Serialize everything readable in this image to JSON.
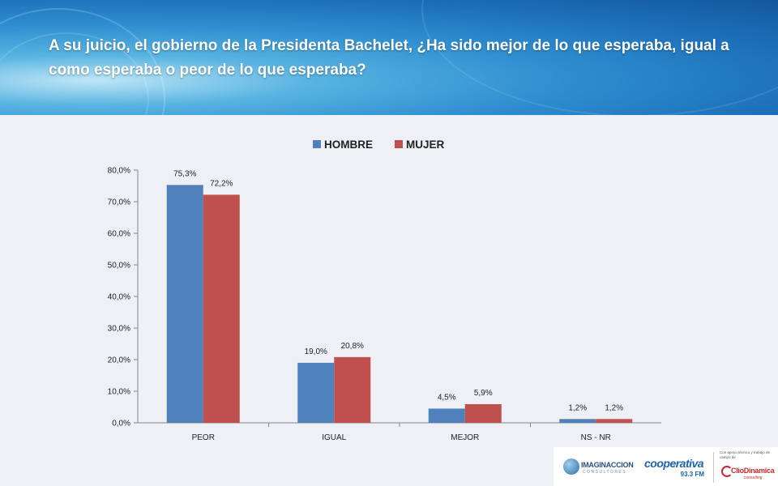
{
  "title": "A su juicio, el gobierno de la Presidenta Bachelet, ¿Ha sido mejor de lo que esperaba, igual a como esperaba o peor de lo que esperaba?",
  "chart_data": {
    "type": "bar",
    "title": "",
    "xlabel": "",
    "ylabel": "",
    "categories": [
      "PEOR",
      "IGUAL",
      "MEJOR",
      "NS - NR"
    ],
    "series": [
      {
        "name": "HOMBRE",
        "values": [
          75.3,
          19.0,
          4.5,
          1.2
        ],
        "labels": [
          "75,3%",
          "19,0%",
          "4,5%",
          "1,2%"
        ],
        "color": "#4f81bd"
      },
      {
        "name": "MUJER",
        "values": [
          72.2,
          20.8,
          5.9,
          1.2
        ],
        "labels": [
          "72,2%",
          "20,8%",
          "5,9%",
          "1,2%"
        ],
        "color": "#c0504d"
      }
    ],
    "ylim": [
      0,
      80
    ],
    "yticks": [
      0,
      10,
      20,
      30,
      40,
      50,
      60,
      70,
      80
    ],
    "ytick_labels": [
      "0,0%",
      "10,0%",
      "20,0%",
      "30,0%",
      "40,0%",
      "50,0%",
      "60,0%",
      "70,0%",
      "80,0%"
    ],
    "grid": false,
    "legend": "top"
  },
  "footer": {
    "logos": {
      "imaginaccion": "IMAGINACCION",
      "imaginaccion_sub": "CONSULTORES",
      "cooperativa": "cooperativa",
      "cooperativa_freq": "93.3 FM",
      "clio_note": "Con apoyo técnico y trabajo de campo de",
      "cliodinamica": "ClioDinamica",
      "cliodinamica_sub": "consulting"
    }
  }
}
